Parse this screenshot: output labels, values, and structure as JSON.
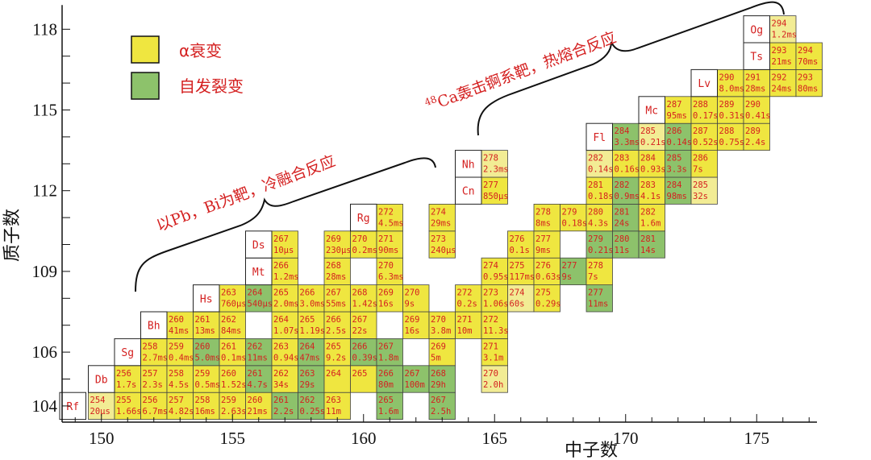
{
  "chart_data": {
    "type": "table",
    "title": "",
    "xlabel": "中子数",
    "ylabel": "质子数",
    "xlim": [
      148.5,
      177.3
    ],
    "ylim": [
      103.4,
      118.9
    ],
    "xticks": [
      "150",
      "155",
      "160",
      "165",
      "170",
      "175"
    ],
    "yticks": [
      "104",
      "106",
      "109",
      "112",
      "115",
      "118"
    ],
    "colors": {
      "alpha": "#efe640",
      "alpha_light": "#f2ec94",
      "sf": "#8dc26b",
      "text": "#d42020"
    },
    "legend": [
      {
        "key": "alpha",
        "label": "α衰变"
      },
      {
        "key": "sf",
        "label": "自发裂变"
      }
    ],
    "annotations": [
      {
        "text": "以Pb，Bi为靶，冷融合反应"
      },
      {
        "sup": "48",
        "text": "Ca轰击锕系靶，热熔合反应"
      }
    ],
    "elements": [
      {
        "Z": 104,
        "symbol": "Rf"
      },
      {
        "Z": 105,
        "symbol": "Db"
      },
      {
        "Z": 106,
        "symbol": "Sg"
      },
      {
        "Z": 107,
        "symbol": "Bh"
      },
      {
        "Z": 108,
        "symbol": "Hs"
      },
      {
        "Z": 109,
        "symbol": "Mt"
      },
      {
        "Z": 110,
        "symbol": "Ds"
      },
      {
        "Z": 111,
        "symbol": "Rg"
      },
      {
        "Z": 112,
        "symbol": "Cn"
      },
      {
        "Z": 113,
        "symbol": "Nh"
      },
      {
        "Z": 114,
        "symbol": "Fl"
      },
      {
        "Z": 115,
        "symbol": "Mc"
      },
      {
        "Z": 116,
        "symbol": "Lv"
      },
      {
        "Z": 117,
        "symbol": "Ts"
      },
      {
        "Z": 118,
        "symbol": "Og"
      }
    ],
    "nuclides": [
      {
        "Z": 104,
        "N": 150,
        "A": "254",
        "hl": "20μs",
        "mode": "alpha_light"
      },
      {
        "Z": 104,
        "N": 151,
        "A": "255",
        "hl": "1.66s",
        "mode": "alpha"
      },
      {
        "Z": 104,
        "N": 152,
        "A": "256",
        "hl": "6.7ms",
        "mode": "alpha"
      },
      {
        "Z": 104,
        "N": 153,
        "A": "257",
        "hl": "4.82s",
        "mode": "alpha"
      },
      {
        "Z": 104,
        "N": 154,
        "A": "258",
        "hl": "16ms",
        "mode": "alpha"
      },
      {
        "Z": 104,
        "N": 155,
        "A": "259",
        "hl": "2.63s",
        "mode": "alpha"
      },
      {
        "Z": 104,
        "N": 156,
        "A": "260",
        "hl": "21ms",
        "mode": "alpha"
      },
      {
        "Z": 104,
        "N": 157,
        "A": "261",
        "hl": "2.2s",
        "mode": "sf"
      },
      {
        "Z": 104,
        "N": 158,
        "A": "262",
        "hl": "0.25s",
        "mode": "sf"
      },
      {
        "Z": 104,
        "N": 159,
        "A": "263",
        "hl": "11m",
        "mode": "alpha"
      },
      {
        "Z": 104,
        "N": 161,
        "A": "265",
        "hl": "1.6m",
        "mode": "sf"
      },
      {
        "Z": 104,
        "N": 163,
        "A": "267",
        "hl": "2.5h",
        "mode": "sf"
      },
      {
        "Z": 105,
        "N": 151,
        "A": "256",
        "hl": "1.7s",
        "mode": "alpha"
      },
      {
        "Z": 105,
        "N": 152,
        "A": "257",
        "hl": "2.3s",
        "mode": "alpha"
      },
      {
        "Z": 105,
        "N": 153,
        "A": "258",
        "hl": "4.5s",
        "mode": "alpha"
      },
      {
        "Z": 105,
        "N": 154,
        "A": "259",
        "hl": "0.5ms",
        "mode": "alpha"
      },
      {
        "Z": 105,
        "N": 155,
        "A": "260",
        "hl": "1.52s",
        "mode": "alpha"
      },
      {
        "Z": 105,
        "N": 156,
        "A": "261",
        "hl": "4.7s",
        "mode": "sf"
      },
      {
        "Z": 105,
        "N": 157,
        "A": "262",
        "hl": "34s",
        "mode": "alpha"
      },
      {
        "Z": 105,
        "N": 158,
        "A": "263",
        "hl": "29s",
        "mode": "sf"
      },
      {
        "Z": 105,
        "N": 159,
        "A": "264",
        "hl": "",
        "mode": "alpha"
      },
      {
        "Z": 105,
        "N": 160,
        "A": "265",
        "hl": "",
        "mode": "alpha"
      },
      {
        "Z": 105,
        "N": 161,
        "A": "266",
        "hl": "80m",
        "mode": "sf"
      },
      {
        "Z": 105,
        "N": 162,
        "A": "267",
        "hl": "100m",
        "mode": "sf"
      },
      {
        "Z": 105,
        "N": 163,
        "A": "268",
        "hl": "29h",
        "mode": "sf"
      },
      {
        "Z": 105,
        "N": 165,
        "A": "270",
        "hl": "2.0h",
        "mode": "alpha_light"
      },
      {
        "Z": 106,
        "N": 152,
        "A": "258",
        "hl": "2.7ms",
        "mode": "alpha"
      },
      {
        "Z": 106,
        "N": 153,
        "A": "259",
        "hl": "0.4ms",
        "mode": "alpha"
      },
      {
        "Z": 106,
        "N": 154,
        "A": "260",
        "hl": "5.0ms",
        "mode": "sf"
      },
      {
        "Z": 106,
        "N": 155,
        "A": "261",
        "hl": "0.1ms",
        "mode": "alpha"
      },
      {
        "Z": 106,
        "N": 156,
        "A": "262",
        "hl": "11ms",
        "mode": "sf"
      },
      {
        "Z": 106,
        "N": 157,
        "A": "263",
        "hl": "0.94s",
        "mode": "alpha"
      },
      {
        "Z": 106,
        "N": 158,
        "A": "264",
        "hl": "47ms",
        "mode": "sf"
      },
      {
        "Z": 106,
        "N": 159,
        "A": "265",
        "hl": "9.2s",
        "mode": "alpha"
      },
      {
        "Z": 106,
        "N": 160,
        "A": "266",
        "hl": "0.39s",
        "mode": "sf"
      },
      {
        "Z": 106,
        "N": 161,
        "A": "267",
        "hl": "1.8m",
        "mode": "sf"
      },
      {
        "Z": 106,
        "N": 163,
        "A": "269",
        "hl": "5m",
        "mode": "alpha"
      },
      {
        "Z": 106,
        "N": 165,
        "A": "271",
        "hl": "3.1m",
        "mode": "alpha"
      },
      {
        "Z": 107,
        "N": 153,
        "A": "260",
        "hl": "41ms",
        "mode": "alpha"
      },
      {
        "Z": 107,
        "N": 154,
        "A": "261",
        "hl": "13ms",
        "mode": "alpha"
      },
      {
        "Z": 107,
        "N": 155,
        "A": "262",
        "hl": "84ms",
        "mode": "alpha"
      },
      {
        "Z": 107,
        "N": 157,
        "A": "264",
        "hl": "1.07s",
        "mode": "alpha"
      },
      {
        "Z": 107,
        "N": 158,
        "A": "265",
        "hl": "1.19s",
        "mode": "alpha"
      },
      {
        "Z": 107,
        "N": 159,
        "A": "266",
        "hl": "2.5s",
        "mode": "alpha"
      },
      {
        "Z": 107,
        "N": 160,
        "A": "267",
        "hl": "22s",
        "mode": "alpha"
      },
      {
        "Z": 107,
        "N": 162,
        "A": "269",
        "hl": "16s",
        "mode": "alpha"
      },
      {
        "Z": 107,
        "N": 163,
        "A": "270",
        "hl": "3.8m",
        "mode": "alpha"
      },
      {
        "Z": 107,
        "N": 164,
        "A": "271",
        "hl": "10m",
        "mode": "alpha"
      },
      {
        "Z": 107,
        "N": 165,
        "A": "272",
        "hl": "11.3s",
        "mode": "alpha"
      },
      {
        "Z": 108,
        "N": 155,
        "A": "263",
        "hl": "760μs",
        "mode": "alpha"
      },
      {
        "Z": 108,
        "N": 156,
        "A": "264",
        "hl": "540μs",
        "mode": "sf"
      },
      {
        "Z": 108,
        "N": 157,
        "A": "265",
        "hl": "2.0ms",
        "mode": "alpha"
      },
      {
        "Z": 108,
        "N": 158,
        "A": "266",
        "hl": "3.0ms",
        "mode": "alpha"
      },
      {
        "Z": 108,
        "N": 159,
        "A": "267",
        "hl": "55ms",
        "mode": "alpha"
      },
      {
        "Z": 108,
        "N": 160,
        "A": "268",
        "hl": "1.42s",
        "mode": "alpha"
      },
      {
        "Z": 108,
        "N": 161,
        "A": "269",
        "hl": "16s",
        "mode": "alpha"
      },
      {
        "Z": 108,
        "N": 162,
        "A": "270",
        "hl": "9s",
        "mode": "alpha"
      },
      {
        "Z": 108,
        "N": 164,
        "A": "272",
        "hl": "0.2s",
        "mode": "alpha"
      },
      {
        "Z": 108,
        "N": 165,
        "A": "273",
        "hl": "1.06s",
        "mode": "alpha"
      },
      {
        "Z": 108,
        "N": 166,
        "A": "274",
        "hl": "60s",
        "mode": "alpha_light"
      },
      {
        "Z": 108,
        "N": 167,
        "A": "275",
        "hl": "0.29s",
        "mode": "alpha"
      },
      {
        "Z": 108,
        "N": 169,
        "A": "277",
        "hl": "11ms",
        "mode": "sf"
      },
      {
        "Z": 109,
        "N": 157,
        "A": "266",
        "hl": "1.2ms",
        "mode": "alpha"
      },
      {
        "Z": 109,
        "N": 159,
        "A": "268",
        "hl": "28ms",
        "mode": "alpha"
      },
      {
        "Z": 109,
        "N": 161,
        "A": "270",
        "hl": "6.3ms",
        "mode": "alpha"
      },
      {
        "Z": 109,
        "N": 165,
        "A": "274",
        "hl": "0.95s",
        "mode": "alpha"
      },
      {
        "Z": 109,
        "N": 166,
        "A": "275",
        "hl": "117ms",
        "mode": "alpha"
      },
      {
        "Z": 109,
        "N": 167,
        "A": "276",
        "hl": "0.63s",
        "mode": "alpha"
      },
      {
        "Z": 109,
        "N": 168,
        "A": "277",
        "hl": "9s",
        "mode": "sf"
      },
      {
        "Z": 109,
        "N": 169,
        "A": "278",
        "hl": "7s",
        "mode": "alpha"
      },
      {
        "Z": 110,
        "N": 157,
        "A": "267",
        "hl": "10μs",
        "mode": "alpha"
      },
      {
        "Z": 110,
        "N": 159,
        "A": "269",
        "hl": "230μs",
        "mode": "alpha"
      },
      {
        "Z": 110,
        "N": 160,
        "A": "270",
        "hl": "0.2ms",
        "mode": "alpha"
      },
      {
        "Z": 110,
        "N": 161,
        "A": "271",
        "hl": "90ms",
        "mode": "alpha"
      },
      {
        "Z": 110,
        "N": 163,
        "A": "273",
        "hl": "240μs",
        "mode": "alpha"
      },
      {
        "Z": 110,
        "N": 166,
        "A": "276",
        "hl": "0.1s",
        "mode": "alpha"
      },
      {
        "Z": 110,
        "N": 167,
        "A": "277",
        "hl": "9ms",
        "mode": "alpha"
      },
      {
        "Z": 110,
        "N": 169,
        "A": "279",
        "hl": "0.21s",
        "mode": "sf"
      },
      {
        "Z": 110,
        "N": 170,
        "A": "280",
        "hl": "11s",
        "mode": "sf"
      },
      {
        "Z": 110,
        "N": 171,
        "A": "281",
        "hl": "14s",
        "mode": "sf"
      },
      {
        "Z": 111,
        "N": 161,
        "A": "272",
        "hl": "4.5ms",
        "mode": "alpha"
      },
      {
        "Z": 111,
        "N": 163,
        "A": "274",
        "hl": "29ms",
        "mode": "alpha"
      },
      {
        "Z": 111,
        "N": 167,
        "A": "278",
        "hl": "8ms",
        "mode": "alpha"
      },
      {
        "Z": 111,
        "N": 168,
        "A": "279",
        "hl": "0.18s",
        "mode": "alpha"
      },
      {
        "Z": 111,
        "N": 169,
        "A": "280",
        "hl": "4.3s",
        "mode": "alpha"
      },
      {
        "Z": 111,
        "N": 170,
        "A": "281",
        "hl": "24s",
        "mode": "sf"
      },
      {
        "Z": 111,
        "N": 171,
        "A": "282",
        "hl": "1.6m",
        "mode": "alpha"
      },
      {
        "Z": 112,
        "N": 165,
        "A": "277",
        "hl": "850μs",
        "mode": "alpha"
      },
      {
        "Z": 112,
        "N": 169,
        "A": "281",
        "hl": "0.18s",
        "mode": "alpha"
      },
      {
        "Z": 112,
        "N": 170,
        "A": "282",
        "hl": "0.9ms",
        "mode": "sf"
      },
      {
        "Z": 112,
        "N": 171,
        "A": "283",
        "hl": "4.1s",
        "mode": "alpha"
      },
      {
        "Z": 112,
        "N": 172,
        "A": "284",
        "hl": "98ms",
        "mode": "sf"
      },
      {
        "Z": 112,
        "N": 173,
        "A": "285",
        "hl": "32s",
        "mode": "alpha_light"
      },
      {
        "Z": 113,
        "N": 165,
        "A": "278",
        "hl": "2.3ms",
        "mode": "alpha_light"
      },
      {
        "Z": 113,
        "N": 169,
        "A": "282",
        "hl": "0.14s",
        "mode": "alpha_light"
      },
      {
        "Z": 113,
        "N": 170,
        "A": "283",
        "hl": "0.16s",
        "mode": "alpha"
      },
      {
        "Z": 113,
        "N": 171,
        "A": "284",
        "hl": "0.93s",
        "mode": "alpha"
      },
      {
        "Z": 113,
        "N": 172,
        "A": "285",
        "hl": "3.3s",
        "mode": "sf"
      },
      {
        "Z": 113,
        "N": 173,
        "A": "286",
        "hl": "7s",
        "mode": "alpha"
      },
      {
        "Z": 114,
        "N": 170,
        "A": "284",
        "hl": "3.3ms",
        "mode": "sf"
      },
      {
        "Z": 114,
        "N": 171,
        "A": "285",
        "hl": "0.21s",
        "mode": "alpha_light"
      },
      {
        "Z": 114,
        "N": 172,
        "A": "286",
        "hl": "0.14s",
        "mode": "sf"
      },
      {
        "Z": 114,
        "N": 173,
        "A": "287",
        "hl": "0.52s",
        "mode": "alpha"
      },
      {
        "Z": 114,
        "N": 174,
        "A": "288",
        "hl": "0.75s",
        "mode": "alpha"
      },
      {
        "Z": 114,
        "N": 175,
        "A": "289",
        "hl": "2.4s",
        "mode": "alpha"
      },
      {
        "Z": 115,
        "N": 172,
        "A": "287",
        "hl": "95ms",
        "mode": "alpha"
      },
      {
        "Z": 115,
        "N": 173,
        "A": "288",
        "hl": "0.17s",
        "mode": "alpha"
      },
      {
        "Z": 115,
        "N": 174,
        "A": "289",
        "hl": "0.31s",
        "mode": "alpha"
      },
      {
        "Z": 115,
        "N": 175,
        "A": "290",
        "hl": "0.41s",
        "mode": "alpha"
      },
      {
        "Z": 116,
        "N": 174,
        "A": "290",
        "hl": "8.0ms",
        "mode": "alpha"
      },
      {
        "Z": 116,
        "N": 175,
        "A": "291",
        "hl": "28ms",
        "mode": "alpha"
      },
      {
        "Z": 116,
        "N": 176,
        "A": "292",
        "hl": "24ms",
        "mode": "alpha"
      },
      {
        "Z": 116,
        "N": 177,
        "A": "293",
        "hl": "80ms",
        "mode": "alpha"
      },
      {
        "Z": 117,
        "N": 176,
        "A": "293",
        "hl": "21ms",
        "mode": "alpha"
      },
      {
        "Z": 117,
        "N": 177,
        "A": "294",
        "hl": "70ms",
        "mode": "alpha"
      },
      {
        "Z": 118,
        "N": 176,
        "A": "294",
        "hl": "1.2ms",
        "mode": "alpha_light"
      }
    ]
  }
}
